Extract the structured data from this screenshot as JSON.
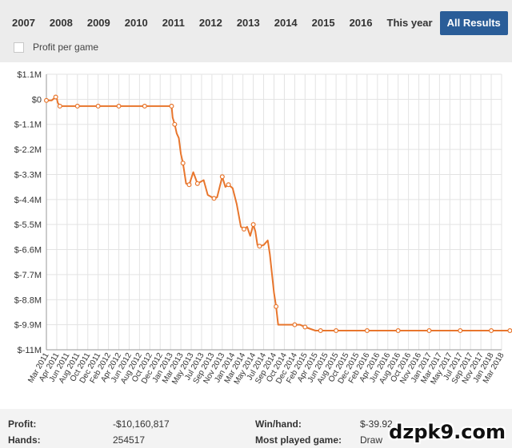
{
  "tabs": [
    {
      "label": "2007",
      "active": false
    },
    {
      "label": "2008",
      "active": false
    },
    {
      "label": "2009",
      "active": false
    },
    {
      "label": "2010",
      "active": false
    },
    {
      "label": "2011",
      "active": false
    },
    {
      "label": "2012",
      "active": false
    },
    {
      "label": "2013",
      "active": false
    },
    {
      "label": "2014",
      "active": false
    },
    {
      "label": "2015",
      "active": false
    },
    {
      "label": "2016",
      "active": false
    },
    {
      "label": "This year",
      "active": false
    },
    {
      "label": "All Results",
      "active": true
    }
  ],
  "profit_per_game": {
    "label": "Profit per game",
    "checked": false
  },
  "chart_data": {
    "type": "line",
    "ylim": [
      -11000000,
      1100000
    ],
    "yticks": [
      {
        "value": 1100000,
        "label": "$1.1M"
      },
      {
        "value": 0,
        "label": "$0"
      },
      {
        "value": -1100000,
        "label": "$-1.1M"
      },
      {
        "value": -2200000,
        "label": "$-2.2M"
      },
      {
        "value": -3300000,
        "label": "$-3.3M"
      },
      {
        "value": -4400000,
        "label": "$-4.4M"
      },
      {
        "value": -5500000,
        "label": "$-5.5M"
      },
      {
        "value": -6600000,
        "label": "$-6.6M"
      },
      {
        "value": -7700000,
        "label": "$-7.7M"
      },
      {
        "value": -8800000,
        "label": "$-8.8M"
      },
      {
        "value": -9900000,
        "label": "$-9.9M"
      },
      {
        "value": -11000000,
        "label": "$-11M"
      }
    ],
    "xticks": [
      "Mar 2011",
      "Apr 2011",
      "Jun 2011",
      "Aug 2011",
      "Oct 2011",
      "Dec 2011",
      "Feb 2012",
      "Apr 2012",
      "Jun 2012",
      "Aug 2012",
      "Oct 2012",
      "Dec 2012",
      "Jan 2013",
      "Mar 2013",
      "May 2013",
      "Jul 2013",
      "Sep 2013",
      "Nov 2013",
      "Jan 2014",
      "Mar 2014",
      "May 2014",
      "Jul 2014",
      "Sep 2014",
      "Oct 2014",
      "Dec 2014",
      "Feb 2015",
      "Apr 2015",
      "Jun 2015",
      "Aug 2015",
      "Oct 2015",
      "Dec 2015",
      "Feb 2016",
      "Apr 2016",
      "Jun 2016",
      "Aug 2016",
      "Oct 2016",
      "Nov 2016",
      "Jan 2017",
      "Mar 2017",
      "May 2017",
      "Jul 2017",
      "Sep 2017",
      "Nov 2017",
      "Jan 2018",
      "Mar 2018"
    ],
    "series": [
      {
        "color": "#e8762d",
        "x": [
          0,
          0.5,
          0.9,
          1.0,
          1.1,
          1.3,
          3,
          5,
          7.5,
          9.5,
          12.1,
          12.2,
          12.4,
          12.6,
          12.8,
          13,
          13.2,
          13.5,
          13.8,
          14.2,
          14.6,
          15.0,
          15.2,
          15.6,
          16.0,
          16.2,
          16.5,
          17,
          17.3,
          17.6,
          18,
          18.4,
          18.8,
          19.1,
          19.4,
          19.7,
          20.0,
          20.2,
          20.4,
          20.6,
          21.0,
          21.4,
          21.6,
          22.0,
          22.2,
          22.4,
          23.0,
          24.0,
          24.5,
          25.0,
          26.0,
          26.5,
          28,
          31,
          34,
          37,
          40,
          43,
          44.8
        ],
        "y": [
          -0.05,
          -0.05,
          0.1,
          0.05,
          -0.15,
          -0.3,
          -0.3,
          -0.3,
          -0.3,
          -0.3,
          -0.3,
          -0.8,
          -1.1,
          -1.5,
          -1.7,
          -2.4,
          -2.8,
          -3.7,
          -3.75,
          -3.2,
          -3.7,
          -3.6,
          -3.55,
          -4.2,
          -4.3,
          -4.35,
          -4.3,
          -3.4,
          -3.85,
          -3.75,
          -3.9,
          -4.6,
          -5.6,
          -5.7,
          -5.6,
          -6.0,
          -5.5,
          -5.8,
          -6.4,
          -6.45,
          -6.4,
          -6.2,
          -6.8,
          -8.5,
          -9.1,
          -9.9,
          -9.9,
          -9.9,
          -9.9,
          -10.0,
          -10.16,
          -10.16,
          -10.16,
          -10.16,
          -10.16,
          -10.16,
          -10.16,
          -10.16,
          -10.16
        ],
        "units": "$M",
        "marker_points": [
          [
            0,
            -0.05
          ],
          [
            0.9,
            0.1
          ],
          [
            1.3,
            -0.3
          ],
          [
            3,
            -0.3
          ],
          [
            5,
            -0.3
          ],
          [
            7,
            -0.3
          ],
          [
            9.5,
            -0.3
          ],
          [
            12.1,
            -0.3
          ],
          [
            12.4,
            -1.1
          ],
          [
            13.2,
            -2.8
          ],
          [
            13.8,
            -3.75
          ],
          [
            14.6,
            -3.7
          ],
          [
            16.2,
            -4.35
          ],
          [
            17,
            -3.4
          ],
          [
            17.6,
            -3.75
          ],
          [
            19.1,
            -5.7
          ],
          [
            20.0,
            -5.5
          ],
          [
            20.6,
            -6.45
          ],
          [
            22.2,
            -9.1
          ],
          [
            24.0,
            -9.9
          ],
          [
            25.0,
            -10.0
          ],
          [
            26.5,
            -10.16
          ],
          [
            28,
            -10.16
          ],
          [
            31,
            -10.16
          ],
          [
            34,
            -10.16
          ],
          [
            37,
            -10.16
          ],
          [
            40,
            -10.16
          ],
          [
            43,
            -10.16
          ],
          [
            44.8,
            -10.16
          ]
        ]
      }
    ],
    "grid": true,
    "legend": "none"
  },
  "footer": {
    "profit_label": "Profit:",
    "profit_value": "-$10,160,817",
    "hands_label": "Hands:",
    "hands_value": "254517",
    "winhand_label": "Win/hand:",
    "winhand_value": "$-39.92",
    "most_played_label": "Most played game:",
    "most_played_value": "Draw"
  },
  "watermark": "dzpk9.com"
}
